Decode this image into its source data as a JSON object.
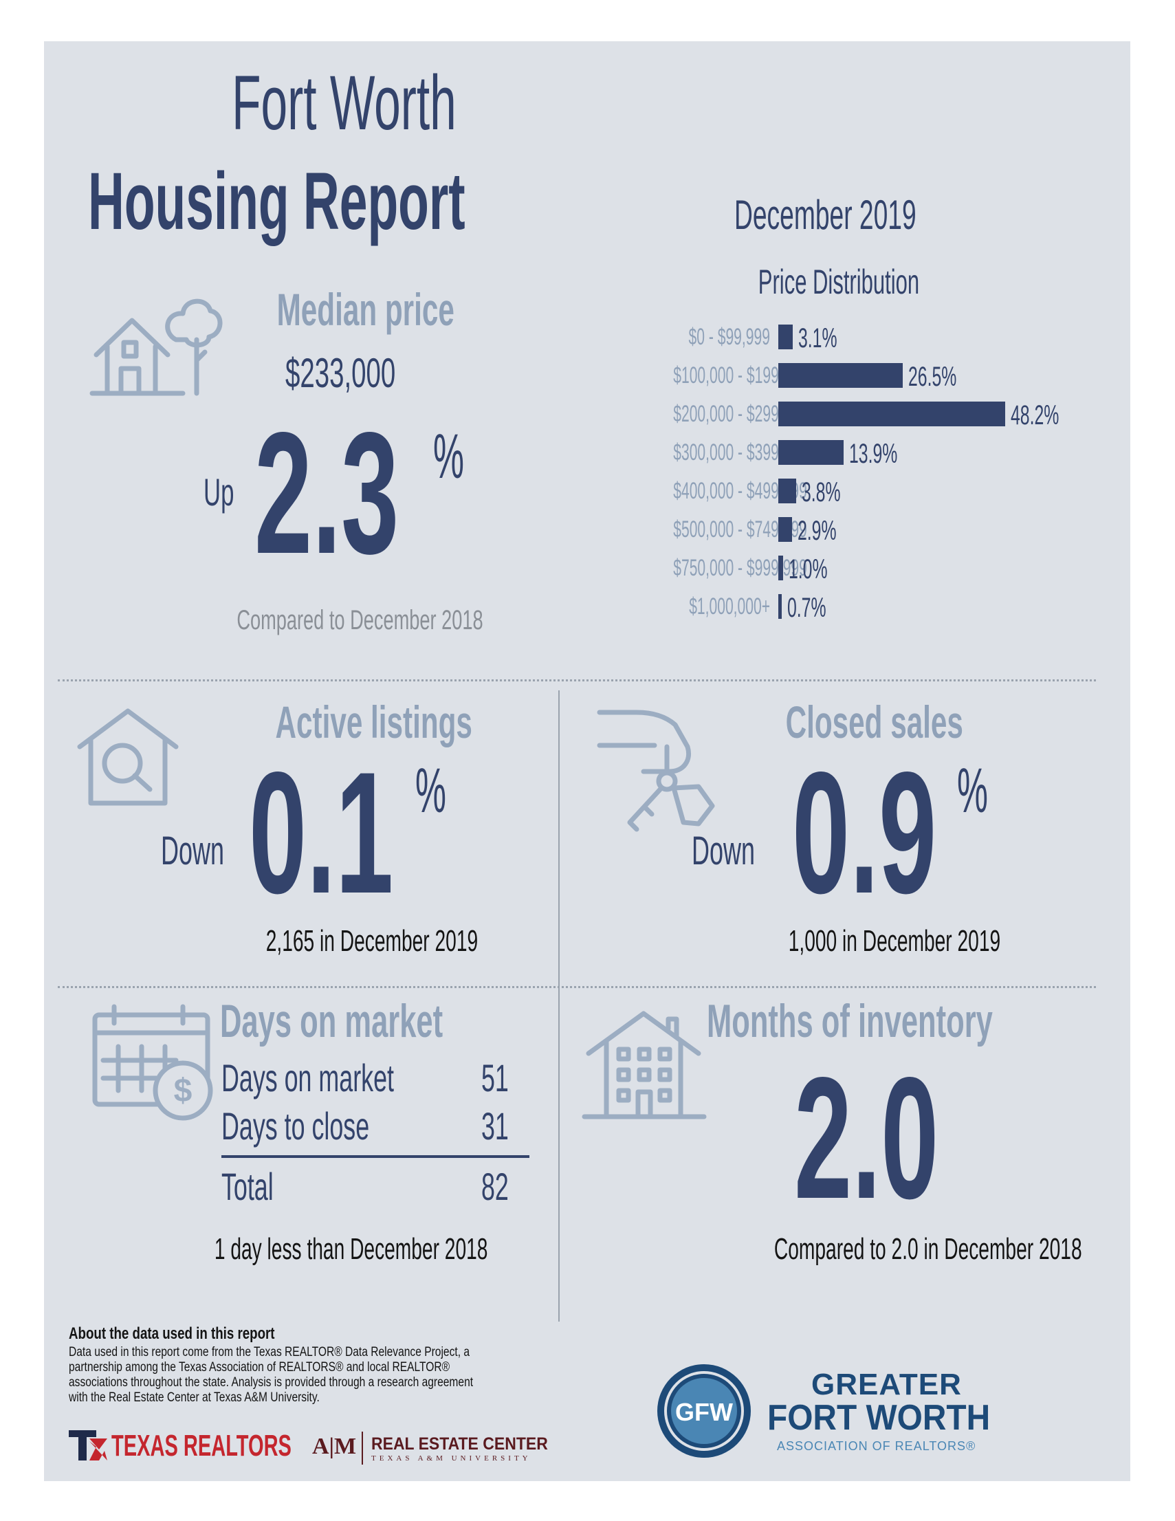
{
  "header": {
    "title_line1": "Fort Worth",
    "title_line2": "Housing Report",
    "period": "December 2019"
  },
  "median_price": {
    "title": "Median price",
    "value": "$233,000",
    "direction": "Up",
    "change": "2.3",
    "unit": "%",
    "comparison": "Compared to December 2018"
  },
  "price_distribution": {
    "title": "Price Distribution",
    "chart_data": {
      "type": "bar",
      "orientation": "horizontal",
      "title": "Price Distribution",
      "categories": [
        "$0 - $99,999",
        "$100,000 - $199,999",
        "$200,000 - $299,999",
        "$300,000 - $399,999",
        "$400,000 - $499,999",
        "$500,000 - $749,999",
        "$750,000 - $999,999",
        "$1,000,000+"
      ],
      "values": [
        3.1,
        26.5,
        48.2,
        13.9,
        3.8,
        2.9,
        1.0,
        0.7
      ],
      "value_labels": [
        "3.1%",
        "26.5%",
        "48.2%",
        "13.9%",
        "3.8%",
        "2.9%",
        "1.0%",
        "0.7%"
      ],
      "bar_color": "#33436b"
    }
  },
  "active_listings": {
    "title": "Active listings",
    "direction": "Down",
    "change": "0.1",
    "unit": "%",
    "detail": "2,165 in December 2019"
  },
  "closed_sales": {
    "title": "Closed sales",
    "direction": "Down",
    "change": "0.9",
    "unit": "%",
    "detail": "1,000 in December 2019"
  },
  "days_on_market": {
    "title": "Days on market",
    "rows": [
      {
        "label": "Days on market",
        "value": "51"
      },
      {
        "label": "Days to close",
        "value": "31"
      }
    ],
    "total_label": "Total",
    "total_value": "82",
    "note": "1 day less than December 2018"
  },
  "months_inventory": {
    "title": "Months of inventory",
    "value": "2.0",
    "note": "Compared to 2.0 in December 2018"
  },
  "about": {
    "heading": "About the data used in this report",
    "text_lines": [
      "Data used in this report come from the Texas REALTOR® Data Relevance Project, a",
      "partnership among the Texas Association of REALTORS® and local REALTOR®",
      "associations throughout the state. Analysis is provided through a research agreement",
      "with the Real Estate Center at Texas A&M University."
    ]
  },
  "logos": {
    "texas_realtors": "TEXAS REALTORS",
    "atm": "A|M",
    "rec_name": "REAL ESTATE CENTER",
    "rec_sub": "TEXAS A&M UNIVERSITY",
    "gfw_line1": "GREATER",
    "gfw_line2": "FORT WORTH",
    "gfw_line3": "ASSOCIATION OF REALTORS®",
    "gfw_mark": "GFW"
  },
  "colors": {
    "navy": "#33436b",
    "light_blue": "#8fa1b8",
    "panel": "#dde1e7",
    "red": "#c4262e"
  },
  "icons": [
    "house-tree-icon",
    "house-search-icon",
    "hand-keys-icon",
    "calendar-dollar-icon",
    "apartment-building-icon"
  ]
}
